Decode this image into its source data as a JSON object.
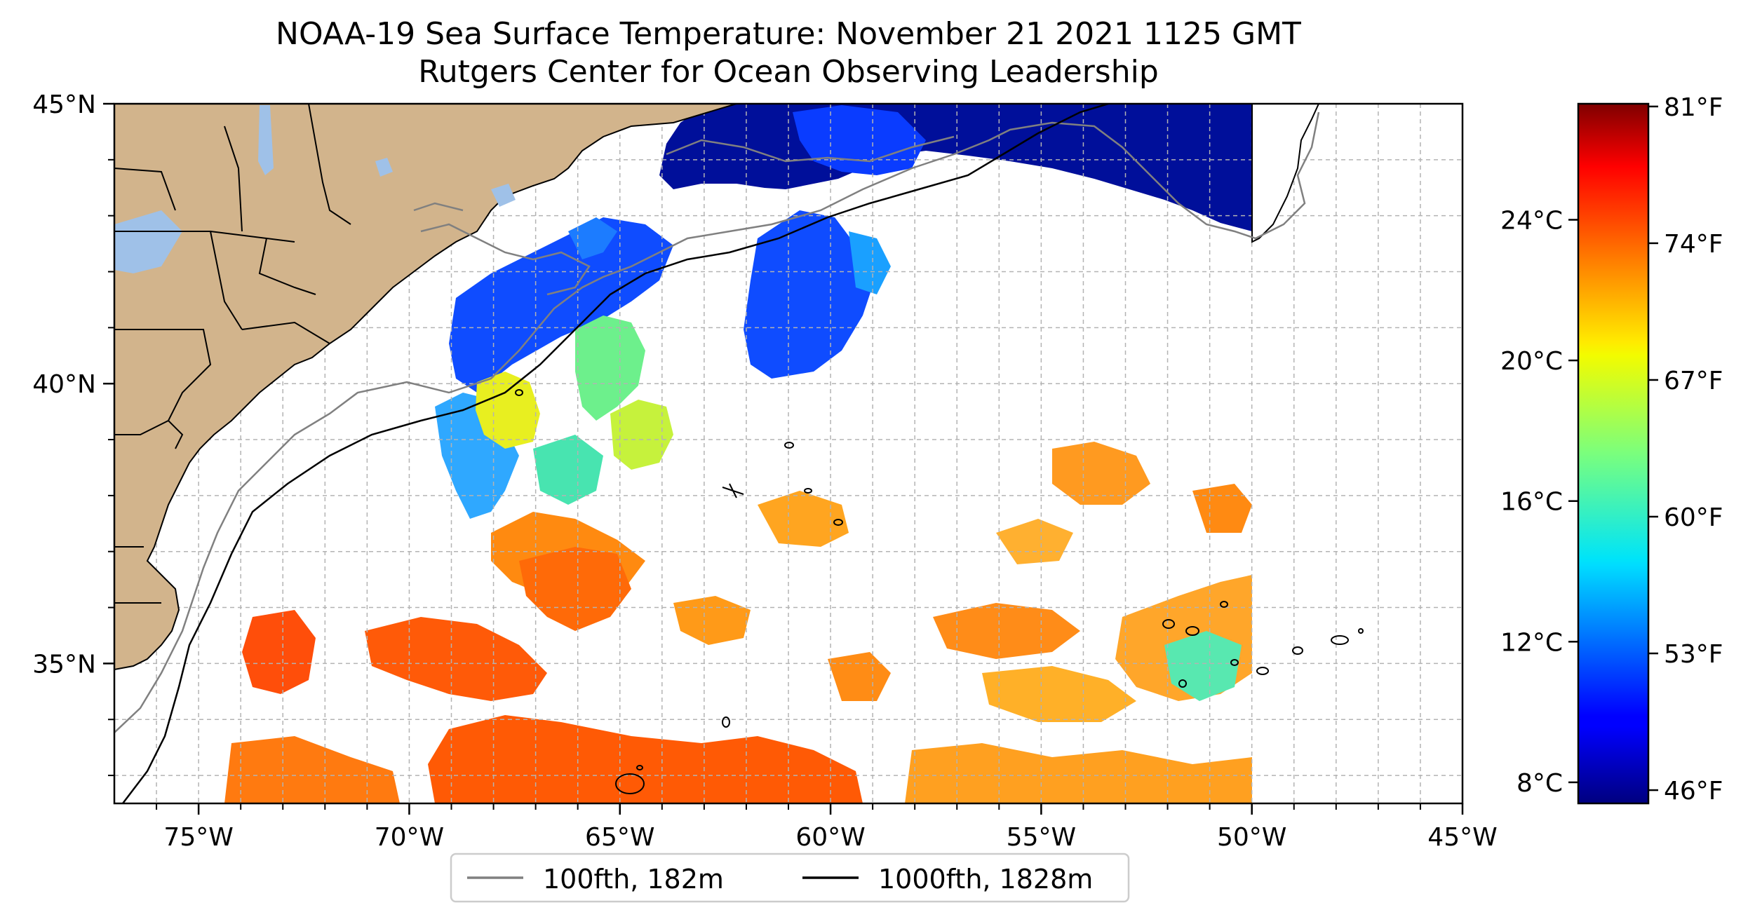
{
  "title": "NOAA-19 Sea Surface Temperature: November 21 2021 1125 GMT",
  "subtitle": "Rutgers Center for Ocean Observing Leadership",
  "map": {
    "lon_range": [
      -77,
      -45
    ],
    "lat_range": [
      32.5,
      45
    ],
    "lon_ticks": [
      {
        "value": -75,
        "label": "75°W"
      },
      {
        "value": -70,
        "label": "70°W"
      },
      {
        "value": -65,
        "label": "65°W"
      },
      {
        "value": -60,
        "label": "60°W"
      },
      {
        "value": -55,
        "label": "55°W"
      },
      {
        "value": -50,
        "label": "50°W"
      },
      {
        "value": -45,
        "label": "45°W"
      }
    ],
    "lat_ticks": [
      {
        "value": 45,
        "label": "45°N"
      },
      {
        "value": 40,
        "label": "40°N"
      },
      {
        "value": 35,
        "label": "35°N"
      }
    ],
    "grid": true,
    "colors": {
      "land": "#d2b48c",
      "lakes": "#9fc1e8",
      "coastline": "#000000",
      "isobath_100": "#808080",
      "isobath_1000": "#000000"
    }
  },
  "legend": {
    "placement": "bottom-center",
    "entries": [
      {
        "label": "100fth, 182m",
        "color": "#808080"
      },
      {
        "label": "1000fth, 1828m",
        "color": "#000000"
      }
    ]
  },
  "colorbar": {
    "colormap": "jet",
    "celsius_range": [
      7.4,
      27.3
    ],
    "celsius_ticks": [
      {
        "value": 8,
        "label": "8°C"
      },
      {
        "value": 12,
        "label": "12°C"
      },
      {
        "value": 16,
        "label": "16°C"
      },
      {
        "value": 20,
        "label": "20°C"
      },
      {
        "value": 24,
        "label": "24°C"
      }
    ],
    "fahrenheit_ticks": [
      {
        "value": 46,
        "label": "46°F"
      },
      {
        "value": 53,
        "label": "53°F"
      },
      {
        "value": 60,
        "label": "60°F"
      },
      {
        "value": 67,
        "label": "67°F"
      },
      {
        "value": 74,
        "label": "74°F"
      },
      {
        "value": 81,
        "label": "81°F"
      }
    ]
  }
}
